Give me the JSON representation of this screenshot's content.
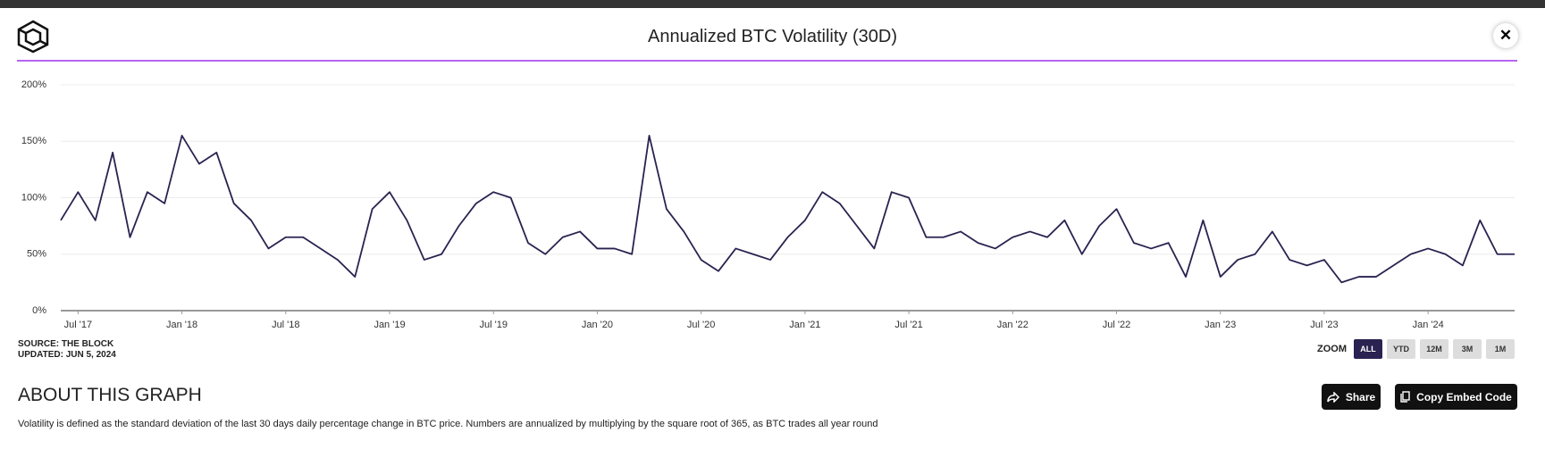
{
  "header": {
    "close": "✕"
  },
  "chart_data": {
    "type": "line",
    "title": "Annualized BTC Volatility (30D)",
    "x": [
      "2017-06",
      "2017-07",
      "2017-08",
      "2017-09",
      "2017-10",
      "2017-11",
      "2017-12",
      "2018-01",
      "2018-02",
      "2018-03",
      "2018-04",
      "2018-05",
      "2018-06",
      "2018-07",
      "2018-08",
      "2018-09",
      "2018-10",
      "2018-11",
      "2018-12",
      "2019-01",
      "2019-02",
      "2019-03",
      "2019-04",
      "2019-05",
      "2019-06",
      "2019-07",
      "2019-08",
      "2019-09",
      "2019-10",
      "2019-11",
      "2019-12",
      "2020-01",
      "2020-02",
      "2020-03",
      "2020-04",
      "2020-05",
      "2020-06",
      "2020-07",
      "2020-08",
      "2020-09",
      "2020-10",
      "2020-11",
      "2020-12",
      "2021-01",
      "2021-02",
      "2021-03",
      "2021-04",
      "2021-05",
      "2021-06",
      "2021-07",
      "2021-08",
      "2021-09",
      "2021-10",
      "2021-11",
      "2021-12",
      "2022-01",
      "2022-02",
      "2022-03",
      "2022-04",
      "2022-05",
      "2022-06",
      "2022-07",
      "2022-08",
      "2022-09",
      "2022-10",
      "2022-11",
      "2022-12",
      "2023-01",
      "2023-02",
      "2023-03",
      "2023-04",
      "2023-05",
      "2023-06",
      "2023-07",
      "2023-08",
      "2023-09",
      "2023-10",
      "2023-11",
      "2023-12",
      "2024-01",
      "2024-02",
      "2024-03",
      "2024-04",
      "2024-05",
      "2024-06"
    ],
    "series": [
      {
        "name": "Annualized BTC Volatility (30D)",
        "color": "#2a2250",
        "values": [
          80,
          105,
          80,
          140,
          65,
          105,
          95,
          155,
          130,
          140,
          95,
          80,
          55,
          65,
          65,
          55,
          45,
          30,
          90,
          105,
          80,
          45,
          50,
          75,
          95,
          105,
          100,
          60,
          50,
          65,
          70,
          55,
          55,
          50,
          155,
          90,
          70,
          45,
          35,
          55,
          50,
          45,
          65,
          80,
          105,
          95,
          75,
          55,
          105,
          100,
          65,
          65,
          70,
          60,
          55,
          65,
          70,
          65,
          80,
          50,
          75,
          90,
          60,
          55,
          60,
          30,
          80,
          30,
          45,
          50,
          70,
          45,
          40,
          45,
          25,
          30,
          30,
          40,
          50,
          55,
          50,
          40,
          80,
          50,
          50
        ]
      }
    ],
    "xlim": [
      "2017-06",
      "2024-06"
    ],
    "xticks": [
      {
        "value": "2017-07",
        "label": "Jul '17"
      },
      {
        "value": "2018-01",
        "label": "Jan '18"
      },
      {
        "value": "2018-07",
        "label": "Jul '18"
      },
      {
        "value": "2019-01",
        "label": "Jan '19"
      },
      {
        "value": "2019-07",
        "label": "Jul '19"
      },
      {
        "value": "2020-01",
        "label": "Jan '20"
      },
      {
        "value": "2020-07",
        "label": "Jul '20"
      },
      {
        "value": "2021-01",
        "label": "Jan '21"
      },
      {
        "value": "2021-07",
        "label": "Jul '21"
      },
      {
        "value": "2022-01",
        "label": "Jan '22"
      },
      {
        "value": "2022-07",
        "label": "Jul '22"
      },
      {
        "value": "2023-01",
        "label": "Jan '23"
      },
      {
        "value": "2023-07",
        "label": "Jul '23"
      },
      {
        "value": "2024-01",
        "label": "Jan '24"
      }
    ],
    "ylim": [
      0,
      200
    ],
    "yticks": [
      {
        "value": 0,
        "label": "0%"
      },
      {
        "value": 50,
        "label": "50%"
      },
      {
        "value": 100,
        "label": "100%"
      },
      {
        "value": 150,
        "label": "150%"
      },
      {
        "value": 200,
        "label": "200%"
      }
    ],
    "grid": true
  },
  "source": "SOURCE: THE BLOCK",
  "updated": "UPDATED: JUN 5, 2024",
  "zoom": {
    "label": "ZOOM",
    "buttons": [
      "ALL",
      "YTD",
      "12M",
      "3M",
      "1M"
    ],
    "active": 0
  },
  "about": {
    "heading": "ABOUT THIS GRAPH",
    "text": "Volatility is defined as the standard deviation of the last 30 days daily percentage change in BTC price. Numbers are annualized by multiplying by the square root of 365, as BTC trades all year round",
    "share": "Share",
    "embed": "Copy Embed Code"
  }
}
